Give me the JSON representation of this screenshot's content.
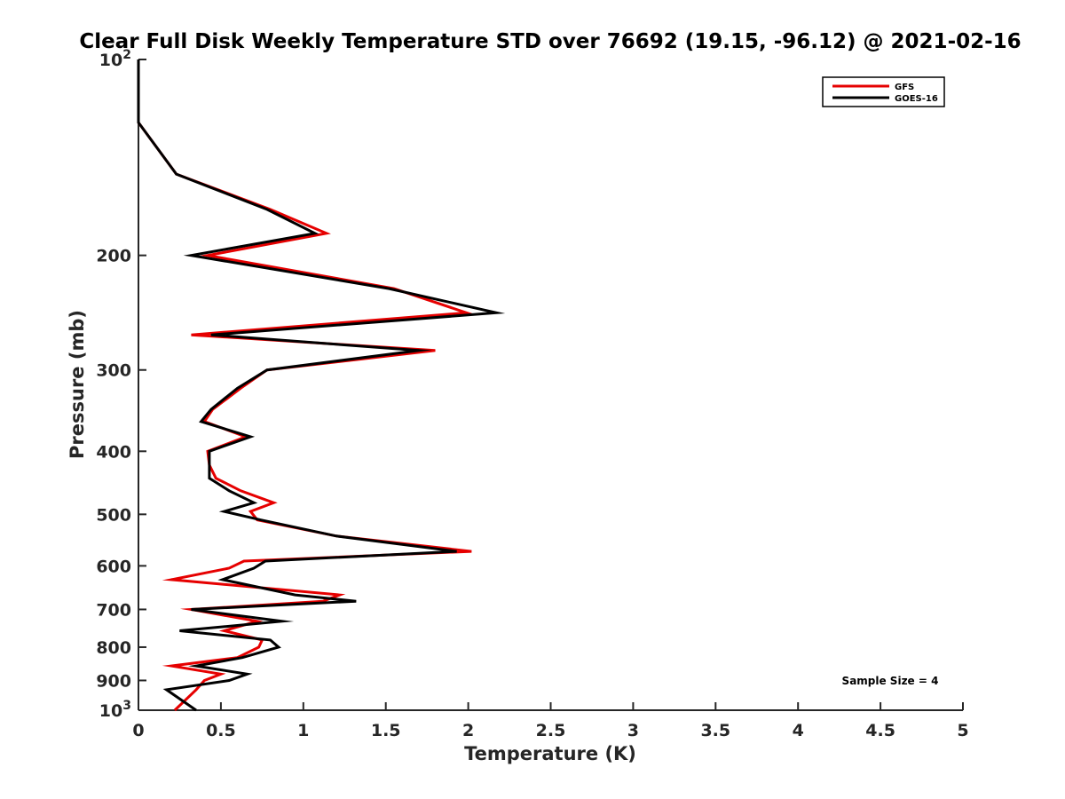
{
  "chart_data": {
    "type": "line",
    "title": "Clear Full Disk Weekly Temperature STD over 76692 (19.15, -96.12) @ 2021-02-16",
    "xlabel": "Temperature (K)",
    "ylabel": "Pressure (mb)",
    "xlim": [
      0,
      5
    ],
    "ylim": [
      100,
      1000
    ],
    "yscale": "log",
    "y_reversed": true,
    "x_ticks": [
      0,
      0.5,
      1,
      1.5,
      2,
      2.5,
      3,
      3.5,
      4,
      4.5,
      5
    ],
    "x_tick_labels": [
      "0",
      "0.5",
      "1",
      "1.5",
      "2",
      "2.5",
      "3",
      "3.5",
      "4",
      "4.5",
      "5"
    ],
    "y_ticks": [
      100,
      200,
      300,
      400,
      500,
      600,
      700,
      800,
      900,
      1000
    ],
    "y_tick_labels": [
      {
        "base": "10",
        "exp": "2"
      },
      {
        "base": "200"
      },
      {
        "base": "300"
      },
      {
        "base": "400"
      },
      {
        "base": "500"
      },
      {
        "base": "600"
      },
      {
        "base": "700"
      },
      {
        "base": "800"
      },
      {
        "base": "900"
      },
      {
        "base": "10",
        "exp": "3"
      }
    ],
    "legend_position": "top-right",
    "annotation": "Sample Size = 4",
    "series": [
      {
        "name": "GFS",
        "color": "#e60000",
        "x": [
          0,
          0,
          0,
          0.23,
          0.8,
          1.14,
          0.42,
          1.55,
          1.99,
          0.32,
          1.8,
          0.78,
          0.62,
          0.45,
          0.4,
          0.65,
          0.42,
          0.43,
          0.47,
          0.62,
          0.82,
          0.68,
          0.72,
          1.2,
          2.02,
          0.64,
          0.55,
          0.2,
          1.22,
          1.12,
          0.32,
          0.72,
          0.52,
          0.75,
          0.73,
          0.6,
          0.2,
          0.5,
          0.4,
          0.35,
          0.22
        ],
        "y": [
          100,
          105,
          125,
          150,
          170,
          185,
          200,
          225,
          245,
          265,
          280,
          300,
          320,
          345,
          360,
          380,
          400,
          420,
          440,
          460,
          480,
          495,
          510,
          540,
          570,
          590,
          605,
          630,
          665,
          680,
          700,
          730,
          755,
          780,
          800,
          830,
          855,
          880,
          900,
          930,
          1000
        ]
      },
      {
        "name": "GOES-16",
        "color": "#000000",
        "x": [
          0,
          0,
          0,
          0.23,
          0.78,
          1.07,
          0.32,
          1.52,
          2.17,
          0.44,
          1.7,
          0.78,
          0.6,
          0.44,
          0.38,
          0.68,
          0.43,
          0.43,
          0.43,
          0.55,
          0.7,
          0.52,
          0.74,
          1.2,
          1.93,
          0.77,
          0.7,
          0.51,
          0.95,
          1.32,
          0.32,
          0.87,
          0.25,
          0.8,
          0.85,
          0.63,
          0.35,
          0.66,
          0.55,
          0.17,
          0.35
        ],
        "y": [
          100,
          105,
          125,
          150,
          170,
          185,
          200,
          225,
          245,
          265,
          280,
          300,
          320,
          345,
          360,
          380,
          400,
          420,
          440,
          460,
          480,
          495,
          510,
          540,
          570,
          590,
          605,
          630,
          665,
          680,
          700,
          730,
          755,
          780,
          800,
          830,
          855,
          880,
          900,
          930,
          1000
        ]
      }
    ]
  }
}
